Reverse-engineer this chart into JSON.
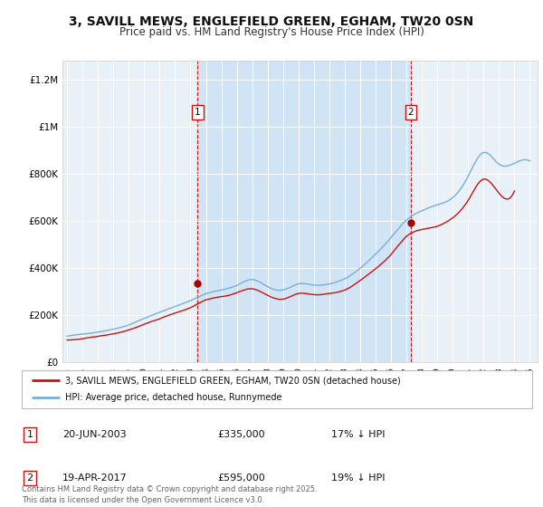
{
  "title": "3, SAVILL MEWS, ENGLEFIELD GREEN, EGHAM, TW20 0SN",
  "subtitle": "Price paid vs. HM Land Registry's House Price Index (HPI)",
  "title_fontsize": 10,
  "subtitle_fontsize": 8.5,
  "background_color": "#ffffff",
  "plot_bg_color": "#e8f0f8",
  "grid_color": "#ffffff",
  "hpi_color": "#7aafd4",
  "price_color": "#cc1111",
  "marker_color": "#aa0000",
  "vline_color": "#cc1111",
  "shade_color": "#d0e4f5",
  "xlim_start": 1994.7,
  "xlim_end": 2025.5,
  "ylim_min": 0,
  "ylim_max": 1280000,
  "yticks": [
    0,
    200000,
    400000,
    600000,
    800000,
    1000000,
    1200000
  ],
  "ytick_labels": [
    "£0",
    "£200K",
    "£400K",
    "£600K",
    "£800K",
    "£1M",
    "£1.2M"
  ],
  "transactions": [
    {
      "year": 2003.46,
      "price": 335000,
      "label": "1",
      "date_str": "20-JUN-2003",
      "price_str": "£335,000",
      "hpi_pct": "17% ↓ HPI"
    },
    {
      "year": 2017.29,
      "price": 595000,
      "label": "2",
      "date_str": "19-APR-2017",
      "price_str": "£595,000",
      "hpi_pct": "19% ↓ HPI"
    }
  ],
  "legend_entries": [
    "3, SAVILL MEWS, ENGLEFIELD GREEN, EGHAM, TW20 0SN (detached house)",
    "HPI: Average price, detached house, Runnymede"
  ],
  "footer_text": "Contains HM Land Registry data © Crown copyright and database right 2025.\nThis data is licensed under the Open Government Licence v3.0."
}
